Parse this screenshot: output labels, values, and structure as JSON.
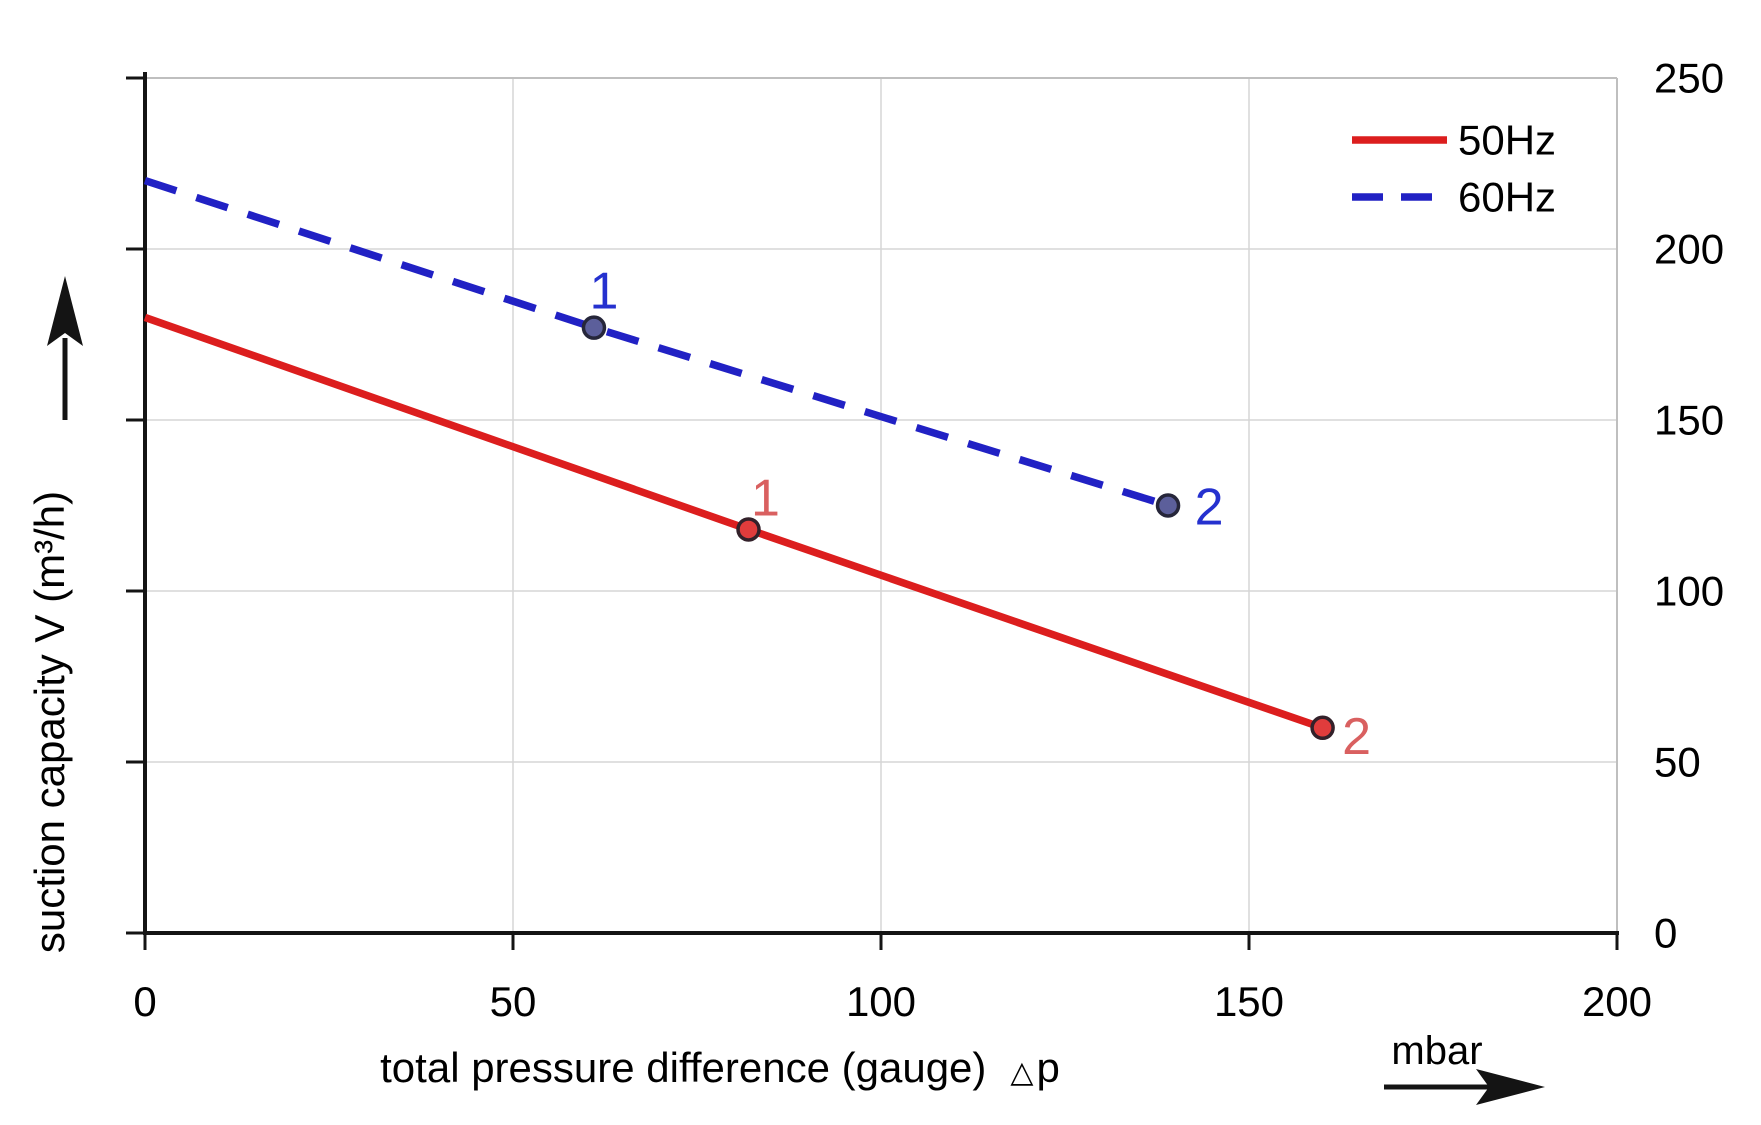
{
  "chart_data": {
    "type": "line",
    "title": "",
    "xlabel": "total pressure difference (gauge)",
    "xlabel_symbol": "△",
    "xlabel_symbol_var": "p",
    "xlabel_unit": "mbar",
    "ylabel": "suction capacity V (m³/h)",
    "xlim": [
      0,
      200
    ],
    "ylim": [
      0,
      250
    ],
    "x_ticks": [
      0,
      50,
      100,
      150,
      200
    ],
    "y_ticks": [
      0,
      50,
      100,
      150,
      200,
      250
    ],
    "y_tick_side": "right",
    "grid": true,
    "colors": {
      "grid": "#d6d6d6",
      "border": "#bfbfbf",
      "axis": "#141414",
      "text": "#000000",
      "background": "#ffffff"
    },
    "legend": {
      "position": "top-right",
      "entries": [
        {
          "label": "50Hz",
          "style": "solid",
          "color": "#dc1e1e"
        },
        {
          "label": "60Hz",
          "style": "dashed",
          "color": "#2121c4"
        }
      ]
    },
    "series": [
      {
        "name": "50Hz",
        "line_style": "solid",
        "color": "#dc1e1e",
        "marker_fill": "#e03c3c",
        "marker_stroke": "#33212a",
        "label_color": "#d96060",
        "points": [
          [
            0,
            180
          ],
          [
            82,
            118
          ],
          [
            160,
            60
          ]
        ],
        "labeled_points": [
          {
            "label": "1",
            "x": 82,
            "y": 118,
            "dx": 17,
            "dy": -31
          },
          {
            "label": "2",
            "x": 160,
            "y": 60,
            "dx": 34,
            "dy": 9
          }
        ]
      },
      {
        "name": "60Hz",
        "line_style": "dashed",
        "color": "#2121c4",
        "marker_fill": "#5c5f9b",
        "marker_stroke": "#26263a",
        "label_color": "#2531cf",
        "points": [
          [
            0,
            220
          ],
          [
            61,
            177
          ],
          [
            139,
            125
          ]
        ],
        "labeled_points": [
          {
            "label": "1",
            "x": 61,
            "y": 177,
            "dx": 10,
            "dy": -36
          },
          {
            "label": "2",
            "x": 139,
            "y": 125,
            "dx": 41,
            "dy": 2
          }
        ]
      }
    ]
  }
}
